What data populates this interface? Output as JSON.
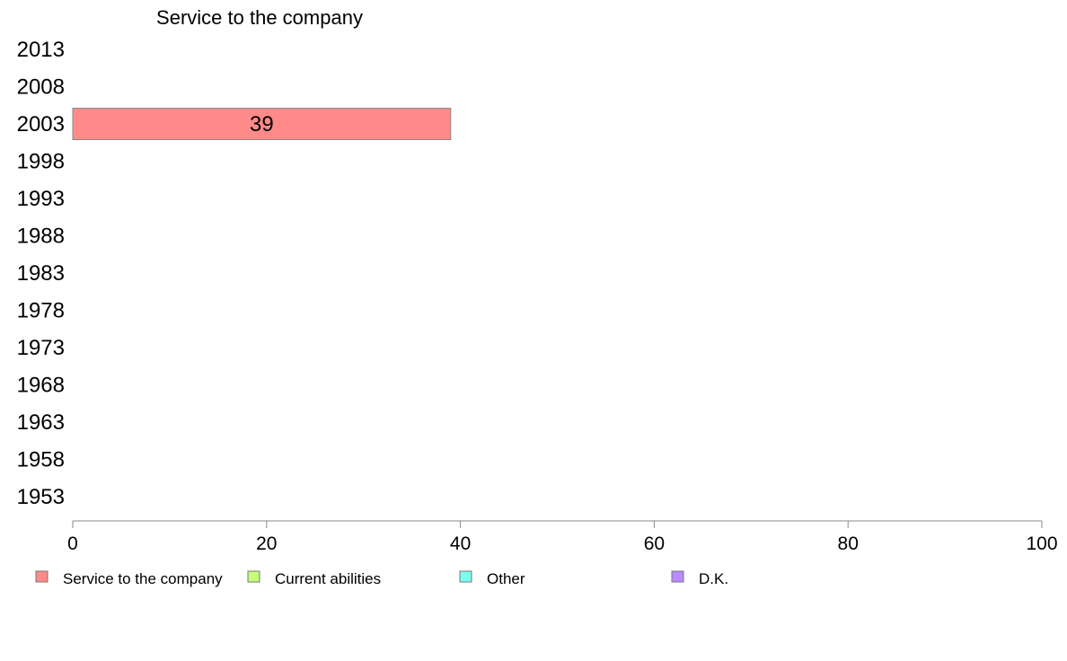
{
  "chart_data": {
    "type": "bar",
    "orientation": "horizontal",
    "stacked": true,
    "title": "Service to the company",
    "categories": [
      "2013",
      "2008",
      "2003",
      "1998",
      "1993",
      "1988",
      "1983",
      "1978",
      "1973",
      "1968",
      "1963",
      "1958",
      "1953"
    ],
    "series": [
      {
        "name": "Service to the company",
        "color": "#FF8A8A",
        "values": [
          null,
          null,
          39,
          null,
          null,
          null,
          null,
          null,
          null,
          null,
          null,
          null,
          null
        ]
      },
      {
        "name": "Current abilities",
        "color": "#C6FF7A",
        "values": [
          null,
          null,
          null,
          null,
          null,
          null,
          null,
          null,
          null,
          null,
          null,
          null,
          null
        ]
      },
      {
        "name": "Other",
        "color": "#7AFFF0",
        "values": [
          null,
          null,
          null,
          null,
          null,
          null,
          null,
          null,
          null,
          null,
          null,
          null,
          null
        ]
      },
      {
        "name": "D.K.",
        "color": "#B98AFF",
        "values": [
          null,
          null,
          null,
          null,
          null,
          null,
          null,
          null,
          null,
          null,
          null,
          null,
          null
        ]
      }
    ],
    "data_labels": [
      {
        "category": "2003",
        "series": "Service to the company",
        "text": "39"
      }
    ],
    "xlim": [
      0,
      100
    ],
    "xticks": [
      "0",
      "20",
      "40",
      "60",
      "80",
      "100"
    ],
    "xlabel": "",
    "ylabel": "",
    "grid": false,
    "legend_position": "bottom"
  }
}
